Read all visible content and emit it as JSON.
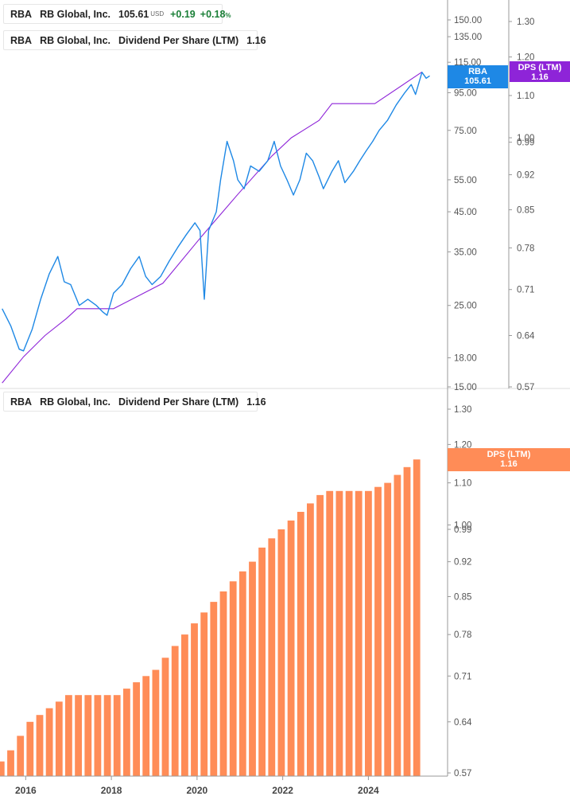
{
  "colors": {
    "price_line": "#1E88E5",
    "dps_line": "#8E24D8",
    "dps_bar": "#FF8C57",
    "positive": "#1a7f37",
    "axis": "#999999",
    "tick_text": "#555555",
    "price_tag_bg": "#1E88E5",
    "dps_tag_bg": "#8E24D8",
    "bar_tag_bg": "#FF8C57"
  },
  "legend_top_1": {
    "ticker": "RBA",
    "name": "RB Global, Inc.",
    "price": "105.61",
    "currency": "USD",
    "change": "+0.19",
    "change_pct": "+0.18",
    "pct_symbol": "%"
  },
  "legend_top_2": {
    "ticker": "RBA",
    "name": "RB Global, Inc.",
    "metric": "Dividend Per Share (LTM)",
    "value": "1.16"
  },
  "legend_bottom": {
    "ticker": "RBA",
    "name": "RB Global, Inc.",
    "metric": "Dividend Per Share (LTM)",
    "value": "1.16"
  },
  "tags": {
    "price_tag": {
      "label": "RBA",
      "value": "105.61"
    },
    "dps_tag": {
      "label": "DPS (LTM)",
      "value": "1.16"
    },
    "bar_tag": {
      "label": "DPS (LTM)",
      "value": "1.16"
    }
  },
  "chart_data": [
    {
      "type": "line",
      "scale": "log",
      "series": [
        {
          "name": "RBA",
          "axis": "left",
          "points": [
            [
              2015.5,
              24.5
            ],
            [
              2015.7,
              22.0
            ],
            [
              2015.9,
              19.0
            ],
            [
              2016.0,
              18.8
            ],
            [
              2016.2,
              21.5
            ],
            [
              2016.4,
              26.0
            ],
            [
              2016.6,
              30.5
            ],
            [
              2016.8,
              34.0
            ],
            [
              2016.95,
              29.0
            ],
            [
              2017.1,
              28.5
            ],
            [
              2017.3,
              25.0
            ],
            [
              2017.5,
              26.0
            ],
            [
              2017.7,
              25.0
            ],
            [
              2017.85,
              24.0
            ],
            [
              2017.95,
              23.5
            ],
            [
              2018.1,
              27.0
            ],
            [
              2018.3,
              28.5
            ],
            [
              2018.5,
              31.5
            ],
            [
              2018.7,
              34.0
            ],
            [
              2018.85,
              30.0
            ],
            [
              2019.0,
              28.5
            ],
            [
              2019.2,
              30.0
            ],
            [
              2019.4,
              33.0
            ],
            [
              2019.6,
              36.0
            ],
            [
              2019.8,
              39.0
            ],
            [
              2020.0,
              42.0
            ],
            [
              2020.12,
              40.0
            ],
            [
              2020.22,
              26.0
            ],
            [
              2020.32,
              40.0
            ],
            [
              2020.5,
              45.0
            ],
            [
              2020.6,
              55.0
            ],
            [
              2020.75,
              70.0
            ],
            [
              2020.9,
              62.0
            ],
            [
              2021.0,
              55.0
            ],
            [
              2021.15,
              52.0
            ],
            [
              2021.3,
              60.0
            ],
            [
              2021.5,
              58.0
            ],
            [
              2021.7,
              62.0
            ],
            [
              2021.85,
              70.0
            ],
            [
              2022.0,
              60.0
            ],
            [
              2022.15,
              55.0
            ],
            [
              2022.3,
              50.0
            ],
            [
              2022.45,
              55.0
            ],
            [
              2022.6,
              65.0
            ],
            [
              2022.75,
              62.0
            ],
            [
              2022.9,
              56.0
            ],
            [
              2023.0,
              52.0
            ],
            [
              2023.2,
              58.0
            ],
            [
              2023.35,
              62.0
            ],
            [
              2023.5,
              54.0
            ],
            [
              2023.7,
              58.0
            ],
            [
              2023.85,
              62.0
            ],
            [
              2024.0,
              66.0
            ],
            [
              2024.15,
              70.0
            ],
            [
              2024.3,
              75.0
            ],
            [
              2024.5,
              80.0
            ],
            [
              2024.7,
              88.0
            ],
            [
              2024.9,
              95.0
            ],
            [
              2025.05,
              100.0
            ],
            [
              2025.15,
              94.0
            ],
            [
              2025.3,
              108.0
            ],
            [
              2025.4,
              104.0
            ],
            [
              2025.48,
              105.61
            ]
          ]
        },
        {
          "name": "Dividend Per Share (LTM)",
          "axis": "right",
          "points": [
            [
              2015.5,
              0.575
            ],
            [
              2016.0,
              0.61
            ],
            [
              2016.5,
              0.64
            ],
            [
              2017.0,
              0.665
            ],
            [
              2017.25,
              0.68
            ],
            [
              2018.1,
              0.68
            ],
            [
              2019.25,
              0.72
            ],
            [
              2020.15,
              0.8
            ],
            [
              2021.0,
              0.88
            ],
            [
              2021.8,
              0.96
            ],
            [
              2022.25,
              1.0
            ],
            [
              2022.9,
              1.04
            ],
            [
              2023.2,
              1.08
            ],
            [
              2024.2,
              1.08
            ],
            [
              2025.3,
              1.16
            ]
          ]
        }
      ],
      "y_left_ticks": [
        "150.00",
        "135.00",
        "115.00",
        "95.00",
        "75.00",
        "55.00",
        "45.00",
        "35.00",
        "25.00",
        "18.00",
        "15.00"
      ],
      "y_right_ticks": [
        "1.30",
        "1.20",
        "1.10",
        "1.00",
        "0.99",
        "0.92",
        "0.85",
        "0.78",
        "0.71",
        "0.64",
        "0.57"
      ]
    },
    {
      "type": "bar",
      "series": [
        {
          "name": "Dividend Per Share (LTM)",
          "values": [
            0.585,
            0.6,
            0.62,
            0.64,
            0.65,
            0.66,
            0.67,
            0.68,
            0.68,
            0.68,
            0.68,
            0.68,
            0.68,
            0.69,
            0.7,
            0.71,
            0.72,
            0.74,
            0.76,
            0.78,
            0.8,
            0.82,
            0.84,
            0.86,
            0.88,
            0.9,
            0.92,
            0.95,
            0.97,
            0.99,
            1.01,
            1.03,
            1.05,
            1.07,
            1.08,
            1.08,
            1.08,
            1.08,
            1.08,
            1.09,
            1.1,
            1.12,
            1.14,
            1.16
          ]
        }
      ],
      "x_ticks": [
        "2016",
        "2018",
        "2020",
        "2022",
        "2024"
      ],
      "y_ticks": [
        "1.30",
        "1.20",
        "1.10",
        "1.00",
        "0.99",
        "0.92",
        "0.85",
        "0.78",
        "0.71",
        "0.64",
        "0.57"
      ]
    }
  ]
}
